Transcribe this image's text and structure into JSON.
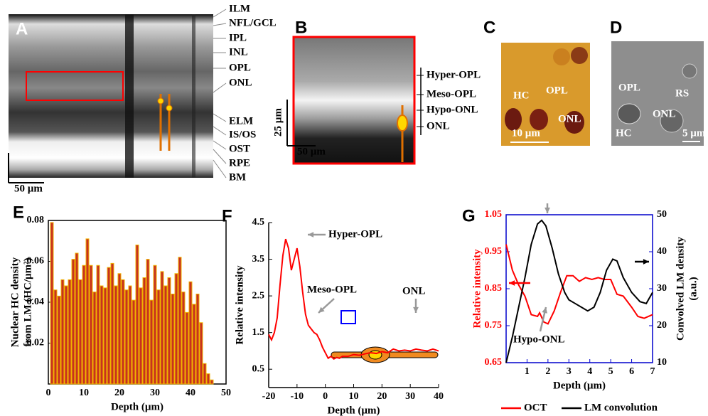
{
  "panels": {
    "A": {
      "label": "A",
      "layers": [
        "ILM",
        "NFL/GCL",
        "IPL",
        "INL",
        "OPL",
        "ONL",
        "ELM",
        "IS/OS",
        "OST",
        "RPE",
        "BM"
      ],
      "scale": "50 µm"
    },
    "B": {
      "label": "B",
      "layers": [
        "Hyper-OPL",
        "Meso-OPL",
        "Hypo-ONL",
        "ONL"
      ],
      "scale_y": "25 µm",
      "scale_x": "50 µm"
    },
    "C": {
      "label": "C",
      "texts": [
        "HC",
        "OPL",
        "ONL"
      ],
      "scale": "10 µm"
    },
    "D": {
      "label": "D",
      "texts": [
        "RS",
        "OPL",
        "ONL",
        "HC"
      ],
      "scale": "5 µm"
    }
  },
  "chart_data": [
    {
      "type": "bar",
      "label": "E",
      "ylabel": [
        "Nuclear HC density",
        "from LM (HC/µm²)"
      ],
      "xlabel": "Depth (µm)",
      "color": "#c8321e",
      "edge_color": "#f0b400",
      "x": [
        1,
        2,
        3,
        4,
        5,
        6,
        7,
        8,
        9,
        10,
        11,
        12,
        13,
        14,
        15,
        16,
        17,
        18,
        19,
        20,
        21,
        22,
        23,
        24,
        25,
        26,
        27,
        28,
        29,
        30,
        31,
        32,
        33,
        34,
        35,
        36,
        37,
        38,
        39,
        40,
        41,
        42,
        43,
        44,
        45,
        46
      ],
      "values": [
        0.079,
        0.046,
        0.043,
        0.051,
        0.048,
        0.051,
        0.061,
        0.064,
        0.051,
        0.058,
        0.071,
        0.058,
        0.045,
        0.058,
        0.048,
        0.047,
        0.057,
        0.059,
        0.048,
        0.054,
        0.051,
        0.046,
        0.048,
        0.041,
        0.068,
        0.047,
        0.052,
        0.061,
        0.041,
        0.058,
        0.046,
        0.055,
        0.048,
        0.052,
        0.044,
        0.054,
        0.062,
        0.045,
        0.035,
        0.05,
        0.039,
        0.044,
        0.03,
        0.01,
        0.005,
        0.002
      ],
      "xlim": [
        0,
        50
      ],
      "xticks": [
        0,
        10,
        20,
        30,
        40,
        50
      ],
      "ylim": [
        0,
        0.08
      ],
      "yticks": [
        0.02,
        0.04,
        0.06,
        0.08
      ]
    },
    {
      "type": "line",
      "label": "F",
      "ylabel": "Relative intensity",
      "xlabel": "Depth (µm)",
      "annotations": [
        "Hyper-OPL",
        "Meso-OPL",
        "ONL"
      ],
      "x": [
        -20,
        -19,
        -18,
        -17,
        -16,
        -15,
        -14,
        -13,
        -12,
        -11,
        -10,
        -9,
        -8,
        -7,
        -6,
        -5,
        -4,
        -3,
        -2,
        -1,
        0,
        1,
        2,
        3,
        4,
        5,
        6,
        8,
        10,
        12,
        14,
        16,
        18,
        20,
        22,
        24,
        26,
        28,
        30,
        32,
        34,
        36,
        38,
        40
      ],
      "series": [
        {
          "color": "#ff0000",
          "values": [
            1.45,
            1.3,
            1.5,
            1.9,
            2.8,
            3.6,
            4.05,
            3.8,
            3.2,
            3.5,
            3.8,
            3.3,
            2.6,
            2.0,
            1.7,
            1.6,
            1.5,
            1.45,
            1.3,
            1.1,
            0.95,
            0.8,
            0.85,
            0.78,
            0.82,
            0.8,
            0.85,
            0.85,
            0.9,
            0.88,
            0.92,
            0.95,
            0.93,
            0.98,
            0.95,
            1.05,
            1.0,
            1.02,
            1.0,
            1.05,
            1.02,
            1.0,
            1.05,
            1.0
          ]
        }
      ],
      "xlim": [
        -20,
        40
      ],
      "xticks": [
        -20,
        -10,
        0,
        10,
        20,
        30,
        40
      ],
      "ylim": [
        0,
        4.5
      ],
      "yticks": [
        0.5,
        1.5,
        2.5,
        3.5,
        4.5
      ]
    },
    {
      "type": "line",
      "label": "G",
      "ylabel": "Relative intensity",
      "y2label": [
        "Convolved LM density",
        "(a.u.)"
      ],
      "xlabel": "Depth (µm)",
      "annotations": [
        "Hypo-ONL"
      ],
      "series": [
        {
          "name": "OCT",
          "color": "#ff0000",
          "x": [
            0,
            0.3,
            0.6,
            0.9,
            1.2,
            1.5,
            1.6,
            1.8,
            2.0,
            2.3,
            2.6,
            2.9,
            3.2,
            3.5,
            3.8,
            4.1,
            4.4,
            4.7,
            5.0,
            5.3,
            5.6,
            6.0,
            6.3,
            6.6,
            7
          ],
          "values": [
            0.97,
            0.9,
            0.86,
            0.83,
            0.78,
            0.775,
            0.785,
            0.76,
            0.755,
            0.79,
            0.84,
            0.885,
            0.885,
            0.87,
            0.88,
            0.875,
            0.88,
            0.875,
            0.875,
            0.835,
            0.83,
            0.8,
            0.775,
            0.77,
            0.78
          ]
        },
        {
          "name": "LM convolution",
          "color": "#000000",
          "axis": "y2",
          "x": [
            0,
            0.3,
            0.6,
            0.9,
            1.2,
            1.5,
            1.7,
            1.9,
            2.2,
            2.5,
            2.8,
            3.0,
            3.3,
            3.6,
            3.9,
            4.2,
            4.5,
            4.8,
            5.1,
            5.3,
            5.6,
            6.0,
            6.4,
            6.7,
            7
          ],
          "values": [
            10,
            17,
            25,
            33,
            42,
            47.5,
            48.5,
            47,
            41,
            34,
            29,
            27,
            26,
            25,
            24,
            25,
            29,
            35,
            38,
            37.5,
            33,
            29,
            26.5,
            26,
            29
          ]
        }
      ],
      "xlim": [
        0,
        7
      ],
      "xticks": [
        1,
        2,
        3,
        4,
        5,
        6,
        7
      ],
      "ylim": [
        0.65,
        1.05
      ],
      "yticks": [
        0.65,
        0.75,
        0.85,
        0.95,
        1.05
      ],
      "y2lim": [
        10,
        50
      ],
      "y2ticks": [
        10,
        20,
        30,
        40,
        50
      ],
      "frame_color": "#0000cc"
    }
  ]
}
